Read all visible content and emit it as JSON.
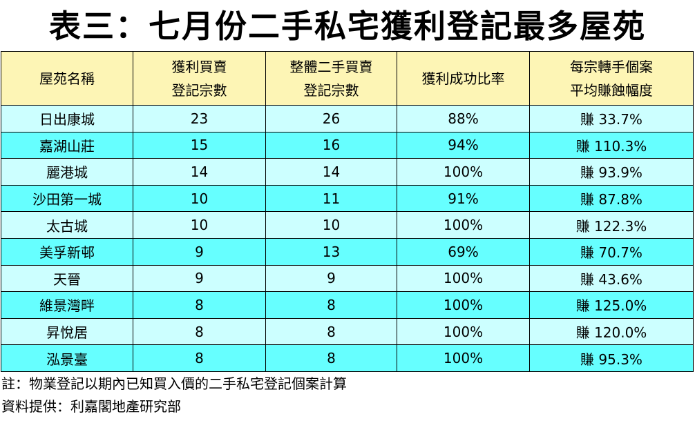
{
  "title": "表三：七月份二手私宅獲利登記最多屋苑",
  "table": {
    "headers": [
      {
        "line1": "屋苑名稱",
        "line2": ""
      },
      {
        "line1": "獲利買賣",
        "line2": "登記宗數"
      },
      {
        "line1": "整體二手買賣",
        "line2": "登記宗數"
      },
      {
        "line1": "獲利成功比率",
        "line2": ""
      },
      {
        "line1": "每宗轉手個案",
        "line2": "平均賺蝕幅度"
      }
    ],
    "rows": [
      [
        "日出康城",
        "23",
        "26",
        "88%",
        "賺 33.7%"
      ],
      [
        "嘉湖山莊",
        "15",
        "16",
        "94%",
        "賺 110.3%"
      ],
      [
        "麗港城",
        "14",
        "14",
        "100%",
        "賺 93.9%"
      ],
      [
        "沙田第一城",
        "10",
        "11",
        "91%",
        "賺 87.8%"
      ],
      [
        "太古城",
        "10",
        "10",
        "100%",
        "賺 122.3%"
      ],
      [
        "美孚新邨",
        "9",
        "13",
        "69%",
        "賺 70.7%"
      ],
      [
        "天晉",
        "9",
        "9",
        "100%",
        "賺 43.6%"
      ],
      [
        "維景灣畔",
        "8",
        "8",
        "100%",
        "賺 125.0%"
      ],
      [
        "昇悅居",
        "8",
        "8",
        "100%",
        "賺 120.0%"
      ],
      [
        "泓景臺",
        "8",
        "8",
        "100%",
        "賺 95.3%"
      ]
    ]
  },
  "notes": {
    "footnote": "註：物業登記以期內已知買入價的二手私宅登記個案計算",
    "source": "資料提供：利嘉閣地產研究部"
  },
  "colors": {
    "header_bg": "#fdf5b5",
    "row_light": "#ccffff",
    "row_dark": "#66ffff"
  }
}
